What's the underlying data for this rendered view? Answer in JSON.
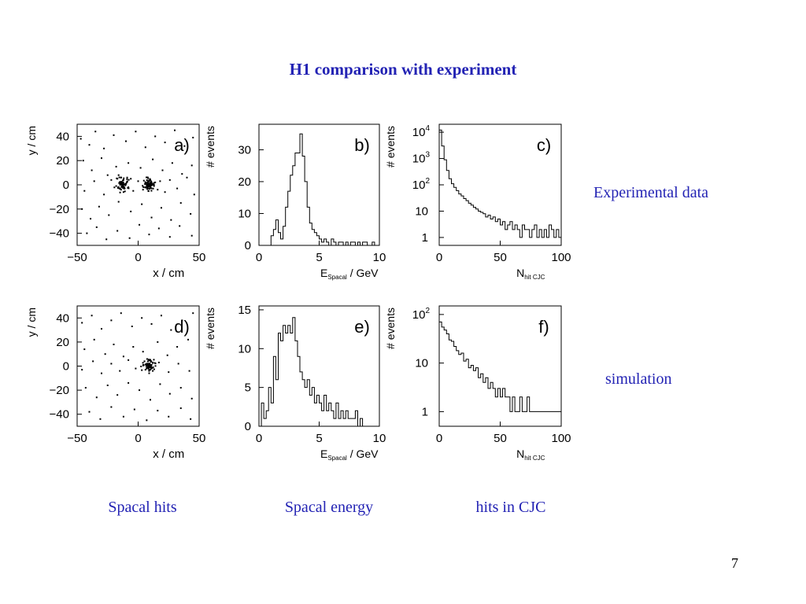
{
  "slide": {
    "title": "H1 comparison with experiment",
    "label_experimental": "Experimental data",
    "label_simulation": "simulation",
    "footer_labels": [
      "Spacal hits",
      "Spacal energy",
      "hits in CJC"
    ],
    "page_number": "7",
    "text_color": "#2323b4"
  },
  "chart_data": [
    {
      "type": "scatter",
      "panel": "a)",
      "row": "Experimental data",
      "xlabel": "x / cm",
      "ylabel": "y / cm",
      "xlim": [
        -50,
        50
      ],
      "ylim": [
        -50,
        50
      ],
      "xticks": [
        -50,
        0,
        50
      ],
      "yticks": [
        40,
        20,
        0,
        -20,
        -40
      ],
      "cluster_centers": [
        [
          -13,
          0
        ],
        [
          9,
          0
        ]
      ],
      "points": [
        [
          -47,
          38
        ],
        [
          -40,
          33
        ],
        [
          -35,
          44
        ],
        [
          -28,
          30
        ],
        [
          -20,
          41
        ],
        [
          -10,
          36
        ],
        [
          -2,
          44
        ],
        [
          6,
          31
        ],
        [
          14,
          40
        ],
        [
          22,
          35
        ],
        [
          30,
          45
        ],
        [
          38,
          32
        ],
        [
          45,
          39
        ],
        [
          -45,
          20
        ],
        [
          -38,
          12
        ],
        [
          -30,
          22
        ],
        [
          -25,
          8
        ],
        [
          -18,
          15
        ],
        [
          -8,
          18
        ],
        [
          2,
          14
        ],
        [
          12,
          21
        ],
        [
          20,
          12
        ],
        [
          28,
          18
        ],
        [
          36,
          9
        ],
        [
          44,
          16
        ],
        [
          -44,
          -5
        ],
        [
          -36,
          3
        ],
        [
          -28,
          -8
        ],
        [
          -22,
          4
        ],
        [
          -17,
          5
        ],
        [
          -16,
          -2
        ],
        [
          -15,
          2
        ],
        [
          -14,
          -4
        ],
        [
          -13,
          0
        ],
        [
          -12,
          4
        ],
        [
          -11,
          -3
        ],
        [
          -10,
          1
        ],
        [
          -9,
          6
        ],
        [
          -12,
          -6
        ],
        [
          -14,
          6
        ],
        [
          -16,
          8
        ],
        [
          -18,
          -1
        ],
        [
          -8,
          -2
        ],
        [
          -6,
          5
        ],
        [
          -4,
          -5
        ],
        [
          0,
          3
        ],
        [
          4,
          -4
        ],
        [
          6,
          2
        ],
        [
          7,
          -1
        ],
        [
          8,
          0
        ],
        [
          9,
          1
        ],
        [
          10,
          -2
        ],
        [
          11,
          2
        ],
        [
          12,
          0
        ],
        [
          13,
          -1
        ],
        [
          8,
          3
        ],
        [
          9,
          -3
        ],
        [
          10,
          4
        ],
        [
          14,
          2
        ],
        [
          16,
          -4
        ],
        [
          18,
          3
        ],
        [
          22,
          -6
        ],
        [
          26,
          4
        ],
        [
          32,
          -3
        ],
        [
          40,
          6
        ],
        [
          46,
          -8
        ],
        [
          -46,
          -20
        ],
        [
          -39,
          -28
        ],
        [
          -32,
          -18
        ],
        [
          -24,
          -25
        ],
        [
          -16,
          -14
        ],
        [
          -6,
          -22
        ],
        [
          3,
          -16
        ],
        [
          11,
          -27
        ],
        [
          19,
          -19
        ],
        [
          27,
          -29
        ],
        [
          35,
          -15
        ],
        [
          43,
          -24
        ],
        [
          -42,
          -40
        ],
        [
          -34,
          -35
        ],
        [
          -26,
          -45
        ],
        [
          -17,
          -38
        ],
        [
          -7,
          -44
        ],
        [
          1,
          -33
        ],
        [
          9,
          -41
        ],
        [
          17,
          -36
        ],
        [
          26,
          -43
        ],
        [
          34,
          -34
        ],
        [
          44,
          -42
        ]
      ]
    },
    {
      "type": "histogram",
      "panel": "b)",
      "row": "Experimental data",
      "xlabel": "E_Spacal / GeV",
      "ylabel": "# events",
      "xlim": [
        0,
        10
      ],
      "ylim": [
        0,
        38
      ],
      "xticks": [
        0,
        5,
        10
      ],
      "yticks": [
        0,
        10,
        20,
        30
      ],
      "bin_width": 0.2,
      "values": [
        0,
        0,
        0,
        0,
        0,
        3,
        5,
        8,
        4,
        2,
        6,
        12,
        17,
        22,
        25,
        29,
        29,
        35,
        28,
        20,
        12,
        7,
        5,
        4,
        3,
        2,
        1,
        2,
        1,
        0,
        2,
        1,
        0,
        1,
        1,
        0,
        1,
        0,
        1,
        1,
        0,
        1,
        0,
        1,
        1,
        0,
        0,
        1,
        0,
        0
      ]
    },
    {
      "type": "histogram",
      "panel": "c)",
      "row": "Experimental data",
      "log_y": true,
      "xlabel": "N_hit CJC",
      "ylabel": "# events",
      "xlim": [
        0,
        100
      ],
      "ylim": [
        0.5,
        20000
      ],
      "xticks": [
        0,
        50,
        100
      ],
      "yticks": [
        "1",
        "10",
        "10^2",
        "10^3",
        "10^4"
      ],
      "bin_width": 2,
      "values": [
        12000,
        3000,
        900,
        350,
        170,
        110,
        80,
        60,
        45,
        38,
        30,
        25,
        20,
        17,
        14,
        12,
        10,
        9,
        8,
        6,
        7,
        5,
        6,
        4,
        5,
        3,
        4,
        2,
        3,
        4,
        2,
        3,
        2,
        1,
        3,
        2,
        2,
        1,
        2,
        3,
        1,
        2,
        1,
        2,
        1,
        3,
        2,
        1,
        2,
        1
      ]
    },
    {
      "type": "scatter",
      "panel": "d)",
      "row": "simulation",
      "xlabel": "x / cm",
      "ylabel": "y / cm",
      "xlim": [
        -50,
        50
      ],
      "ylim": [
        -50,
        50
      ],
      "xticks": [
        -50,
        0,
        50
      ],
      "yticks": [
        40,
        20,
        0,
        -20,
        -40
      ],
      "cluster_centers": [
        [
          9,
          0
        ]
      ],
      "points": [
        [
          -46,
          36
        ],
        [
          -38,
          42
        ],
        [
          -30,
          31
        ],
        [
          -22,
          38
        ],
        [
          -14,
          44
        ],
        [
          -5,
          33
        ],
        [
          3,
          40
        ],
        [
          11,
          35
        ],
        [
          19,
          42
        ],
        [
          27,
          30
        ],
        [
          36,
          38
        ],
        [
          45,
          44
        ],
        [
          -44,
          14
        ],
        [
          -36,
          22
        ],
        [
          -27,
          10
        ],
        [
          -20,
          18
        ],
        [
          -12,
          8
        ],
        [
          -4,
          16
        ],
        [
          4,
          12
        ],
        [
          16,
          20
        ],
        [
          24,
          9
        ],
        [
          32,
          16
        ],
        [
          41,
          22
        ],
        [
          -46,
          -3
        ],
        [
          -37,
          4
        ],
        [
          -30,
          -6
        ],
        [
          -22,
          2
        ],
        [
          -15,
          -4
        ],
        [
          -8,
          5
        ],
        [
          -2,
          -2
        ],
        [
          6,
          -3
        ],
        [
          7,
          2
        ],
        [
          8,
          -1
        ],
        [
          9,
          0
        ],
        [
          10,
          1
        ],
        [
          11,
          -2
        ],
        [
          12,
          3
        ],
        [
          8,
          4
        ],
        [
          9,
          -4
        ],
        [
          10,
          -1
        ],
        [
          11,
          1
        ],
        [
          7,
          -2
        ],
        [
          10,
          5
        ],
        [
          12,
          -4
        ],
        [
          9,
          2
        ],
        [
          8,
          1
        ],
        [
          10,
          -3
        ],
        [
          17,
          3
        ],
        [
          25,
          -5
        ],
        [
          33,
          2
        ],
        [
          42,
          -4
        ],
        [
          -43,
          -18
        ],
        [
          -34,
          -26
        ],
        [
          -25,
          -16
        ],
        [
          -17,
          -24
        ],
        [
          -8,
          -14
        ],
        [
          1,
          -20
        ],
        [
          10,
          -28
        ],
        [
          18,
          -15
        ],
        [
          26,
          -23
        ],
        [
          35,
          -18
        ],
        [
          44,
          -27
        ],
        [
          -40,
          -38
        ],
        [
          -31,
          -44
        ],
        [
          -22,
          -34
        ],
        [
          -12,
          -42
        ],
        [
          -3,
          -36
        ],
        [
          7,
          -45
        ],
        [
          16,
          -37
        ],
        [
          25,
          -42
        ],
        [
          35,
          -35
        ],
        [
          43,
          -44
        ]
      ]
    },
    {
      "type": "histogram",
      "panel": "e)",
      "row": "simulation",
      "xlabel": "E_Spacal / GeV",
      "ylabel": "# events",
      "xlim": [
        0,
        10
      ],
      "ylim": [
        0,
        15.5
      ],
      "xticks": [
        0,
        5,
        10
      ],
      "yticks": [
        0,
        5,
        10,
        15
      ],
      "bin_width": 0.2,
      "values": [
        0,
        3,
        1,
        2,
        5,
        3,
        9,
        6,
        12,
        11,
        13,
        12,
        13,
        12,
        14,
        11,
        9,
        7,
        6,
        5,
        6,
        4,
        5,
        3,
        4,
        3,
        2,
        4,
        2,
        3,
        2,
        1,
        3,
        1,
        2,
        1,
        2,
        1,
        1,
        1,
        2,
        0,
        1,
        0,
        0,
        0,
        0,
        0,
        0,
        0
      ]
    },
    {
      "type": "histogram",
      "panel": "f)",
      "row": "simulation",
      "log_y": true,
      "xlabel": "N_hit CJC",
      "ylabel": "# events",
      "xlim": [
        0,
        100
      ],
      "ylim": [
        0.5,
        150
      ],
      "xticks": [
        0,
        50,
        100
      ],
      "yticks": [
        "1",
        "10",
        "10^2"
      ],
      "bin_width": 2,
      "values": [
        70,
        55,
        48,
        40,
        30,
        28,
        22,
        18,
        15,
        16,
        11,
        12,
        8,
        9,
        7,
        8,
        5,
        6,
        4,
        5,
        3,
        4,
        3,
        2,
        3,
        2,
        3,
        2,
        2,
        1,
        2,
        1,
        1,
        2,
        1,
        1,
        2,
        1,
        1,
        1,
        1,
        1,
        1,
        1,
        1,
        1,
        1,
        1,
        1,
        1
      ]
    }
  ]
}
